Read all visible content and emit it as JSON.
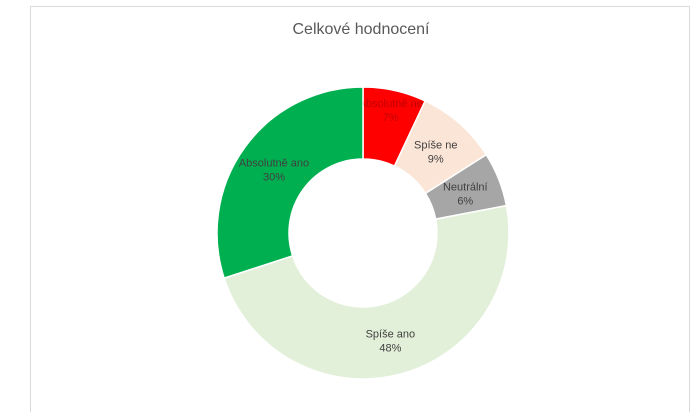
{
  "chart_data": {
    "type": "pie",
    "variant": "donut",
    "title": "Celkové hodnocení",
    "categories": [
      "Absolutně ne",
      "Spíše ne",
      "Neutrální",
      "Spíše ano",
      "Absolutně ano"
    ],
    "values": [
      7,
      9,
      6,
      48,
      30
    ],
    "value_labels": [
      "7%",
      "9%",
      "6%",
      "48%",
      "30%"
    ],
    "colors": [
      "#ff0000",
      "#fbe5d6",
      "#a6a6a6",
      "#e2f0d9",
      "#00b050"
    ],
    "label_colors": [
      "#c00000",
      "#404040",
      "#404040",
      "#404040",
      "#404040"
    ],
    "legend": "none"
  }
}
